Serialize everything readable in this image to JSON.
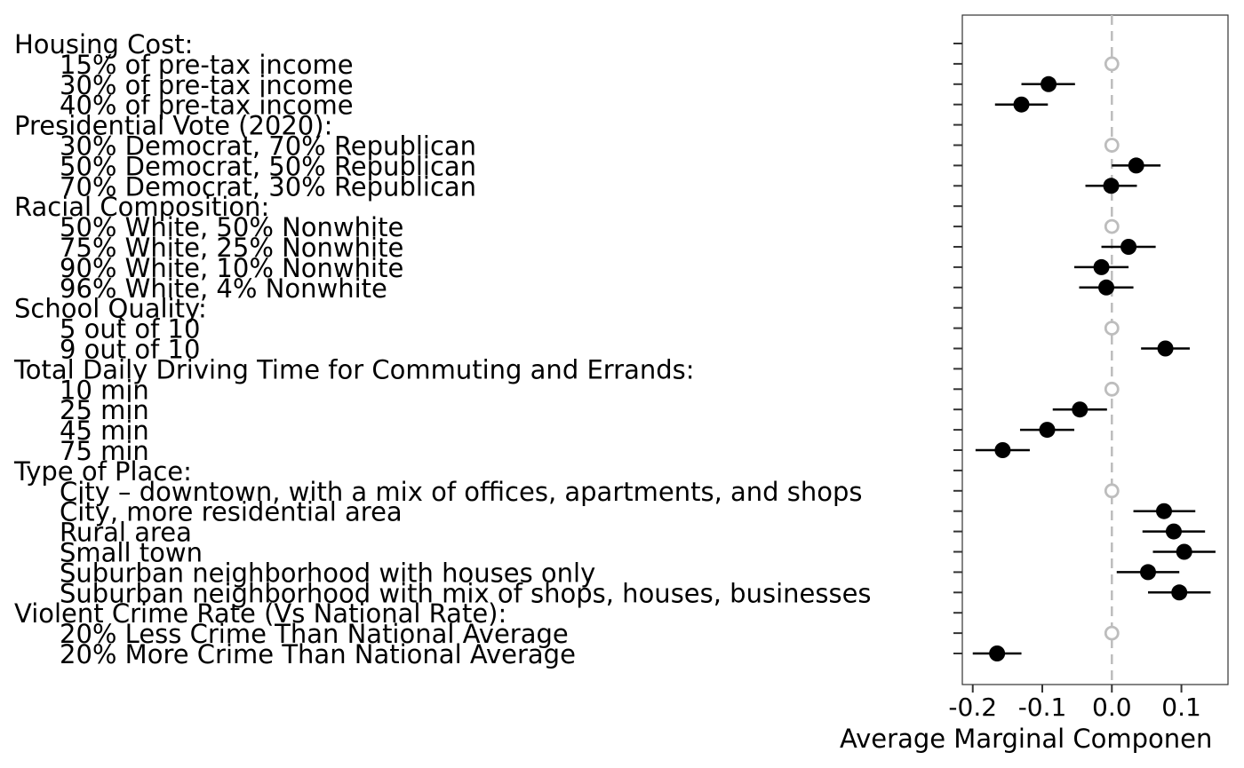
{
  "chart_data": {
    "type": "scatter",
    "subtype": "coefficient-plot-with-error-bars",
    "title": "",
    "xlabel": "Average Marginal Componen",
    "ylabel": "",
    "xlim": [
      -0.215,
      0.167
    ],
    "x_ticks": [
      {
        "value": -0.2,
        "label": "-0.2"
      },
      {
        "value": -0.1,
        "label": "-0.1"
      },
      {
        "value": 0.0,
        "label": "0.0"
      },
      {
        "value": 0.1,
        "label": "0.1"
      }
    ],
    "reference_line": 0,
    "grid": false,
    "rows": [
      {
        "label": "Housing Cost:",
        "header": true
      },
      {
        "label": "15% of pre-tax income",
        "estimate": 0,
        "lower": 0,
        "upper": 0,
        "baseline": true
      },
      {
        "label": "30% of pre-tax income",
        "estimate": -0.091,
        "lower": -0.13,
        "upper": -0.053
      },
      {
        "label": "40% of pre-tax income",
        "estimate": -0.13,
        "lower": -0.168,
        "upper": -0.092
      },
      {
        "label": "Presidential Vote (2020):",
        "header": true
      },
      {
        "label": "30% Democrat, 70% Republican",
        "estimate": 0,
        "lower": 0,
        "upper": 0,
        "baseline": true
      },
      {
        "label": "50% Democrat, 50% Republican",
        "estimate": 0.035,
        "lower": 0.0,
        "upper": 0.07
      },
      {
        "label": "70% Democrat, 30% Republican",
        "estimate": -0.001,
        "lower": -0.038,
        "upper": 0.036
      },
      {
        "label": "Racial Composition:",
        "header": true
      },
      {
        "label": "50% White, 50% Nonwhite",
        "estimate": 0,
        "lower": 0,
        "upper": 0,
        "baseline": true
      },
      {
        "label": "75% White, 25% Nonwhite",
        "estimate": 0.024,
        "lower": -0.015,
        "upper": 0.063
      },
      {
        "label": "90% White, 10% Nonwhite",
        "estimate": -0.015,
        "lower": -0.054,
        "upper": 0.024
      },
      {
        "label": "96% White, 4% Nonwhite",
        "estimate": -0.008,
        "lower": -0.047,
        "upper": 0.031
      },
      {
        "label": "School Quality:",
        "header": true
      },
      {
        "label": "5 out of 10",
        "estimate": 0,
        "lower": 0,
        "upper": 0,
        "baseline": true
      },
      {
        "label": "9 out of 10",
        "estimate": 0.077,
        "lower": 0.042,
        "upper": 0.112
      },
      {
        "label": "Total Daily Driving Time for Commuting and Errands:",
        "header": true
      },
      {
        "label": "10 min",
        "estimate": 0,
        "lower": 0,
        "upper": 0,
        "baseline": true
      },
      {
        "label": "25 min",
        "estimate": -0.046,
        "lower": -0.085,
        "upper": -0.007
      },
      {
        "label": "45 min",
        "estimate": -0.093,
        "lower": -0.132,
        "upper": -0.054
      },
      {
        "label": "75 min",
        "estimate": -0.157,
        "lower": -0.196,
        "upper": -0.118
      },
      {
        "label": "Type of Place:",
        "header": true
      },
      {
        "label": "City – downtown, with a mix of offices, apartments, and shops",
        "estimate": 0,
        "lower": 0,
        "upper": 0,
        "baseline": true
      },
      {
        "label": "City, more residential area",
        "estimate": 0.075,
        "lower": 0.031,
        "upper": 0.12
      },
      {
        "label": "Rural area",
        "estimate": 0.089,
        "lower": 0.044,
        "upper": 0.134
      },
      {
        "label": "Small town",
        "estimate": 0.104,
        "lower": 0.059,
        "upper": 0.149
      },
      {
        "label": "Suburban neighborhood with houses only",
        "estimate": 0.052,
        "lower": 0.007,
        "upper": 0.097
      },
      {
        "label": "Suburban neighborhood with mix of shops, houses, businesses",
        "estimate": 0.097,
        "lower": 0.052,
        "upper": 0.142
      },
      {
        "label": "Violent Crime Rate (Vs National Rate):",
        "header": true
      },
      {
        "label": "20% Less Crime Than National Average",
        "estimate": 0,
        "lower": 0,
        "upper": 0,
        "baseline": true
      },
      {
        "label": "20% More Crime Than National Average",
        "estimate": -0.165,
        "lower": -0.2,
        "upper": -0.13
      }
    ],
    "colors": {
      "estimate": "#000000",
      "baseline": "#bdbdbd",
      "reference_line": "#bdbdbd",
      "axis": "#333333"
    }
  }
}
